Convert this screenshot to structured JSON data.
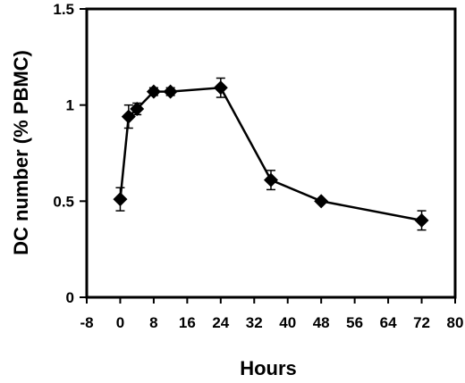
{
  "chart_data": {
    "type": "line",
    "title": "",
    "xlabel": "Hours",
    "ylabel": "DC number (% PBMC)",
    "xlim": [
      -8,
      80
    ],
    "ylim": [
      0,
      1.5
    ],
    "xticks": [
      -8,
      0,
      8,
      16,
      24,
      32,
      40,
      48,
      56,
      64,
      72,
      80
    ],
    "yticks": [
      {
        "value": 0,
        "label": "0"
      },
      {
        "value": 0.5,
        "label": "0.5"
      },
      {
        "value": 1,
        "label": "1"
      },
      {
        "value": 1.5,
        "label": "1.5"
      }
    ],
    "grid": false,
    "legend": "none",
    "marker": "diamond",
    "color": "#000000",
    "series": [
      {
        "x": [
          0,
          2,
          4,
          8,
          12,
          24,
          36,
          48,
          72
        ],
        "y": [
          0.51,
          0.94,
          0.98,
          1.07,
          1.07,
          1.09,
          0.61,
          0.5,
          0.4
        ],
        "err": [
          0.06,
          0.06,
          0.03,
          0.02,
          0.02,
          0.05,
          0.05,
          0.01,
          0.05
        ]
      }
    ]
  }
}
